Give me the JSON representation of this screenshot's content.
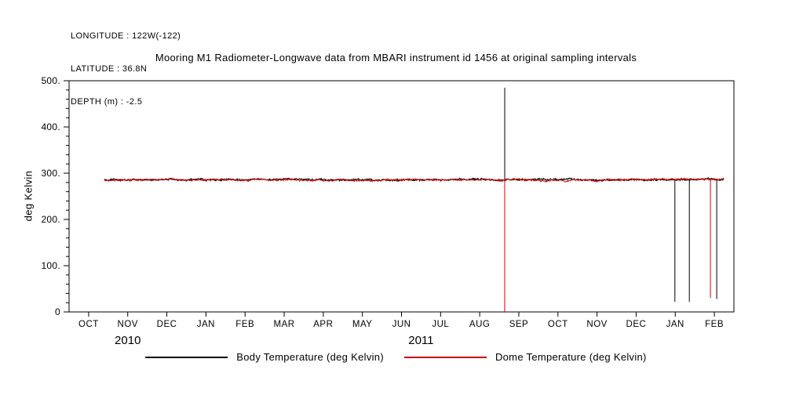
{
  "header": {
    "longitude": "LONGITUDE : 122W(-122)",
    "latitude": "LATITUDE : 36.8N",
    "depth": "DEPTH (m) : -2.5"
  },
  "chart_data": {
    "type": "line",
    "title": "Mooring M1 Radiometer-Longwave data from MBARI instrument id 1456 at original sampling intervals",
    "xlabel": "",
    "ylabel": "deg Kelvin",
    "ylim": [
      0,
      500
    ],
    "grid": false,
    "legend_position": "bottom",
    "yticks": [
      {
        "value": 0,
        "label": "0"
      },
      {
        "value": 100,
        "label": "100."
      },
      {
        "value": 200,
        "label": "200."
      },
      {
        "value": 300,
        "label": "300."
      },
      {
        "value": 400,
        "label": "400."
      },
      {
        "value": 500,
        "label": "500."
      }
    ],
    "x_axis": {
      "tick_labels": [
        "OCT",
        "NOV",
        "DEC",
        "JAN",
        "FEB",
        "MAR",
        "APR",
        "MAY",
        "JUN",
        "JUL",
        "AUG",
        "SEP",
        "OCT",
        "NOV",
        "DEC",
        "JAN",
        "FEB"
      ],
      "year_labels": [
        {
          "text": "2010",
          "center_tick_index": 1
        },
        {
          "text": "2011",
          "center_tick_index": 8.5
        }
      ]
    },
    "series": [
      {
        "name": "Body Temperature (deg Kelvin)",
        "color": "#000000",
        "baseline_deg_k": 286,
        "noise_amplitude_deg_k": 2.5,
        "data_start_month": 0.9,
        "data_end_month": 16.74,
        "spikes": [
          {
            "months_since_oct_2010": 11.14,
            "value_deg_k": 485
          },
          {
            "months_since_oct_2010": 15.49,
            "value_deg_k": 22
          },
          {
            "months_since_oct_2010": 15.86,
            "value_deg_k": 22
          },
          {
            "months_since_oct_2010": 16.56,
            "value_deg_k": 28
          }
        ]
      },
      {
        "name": "Dome Temperature (deg Kelvin)",
        "color": "#cc0000",
        "baseline_deg_k": 285.5,
        "noise_amplitude_deg_k": 2.5,
        "data_start_month": 0.9,
        "data_end_month": 16.74,
        "spikes": [
          {
            "months_since_oct_2010": 11.14,
            "value_deg_k": 0
          },
          {
            "months_since_oct_2010": 16.4,
            "value_deg_k": 30
          }
        ]
      }
    ]
  }
}
